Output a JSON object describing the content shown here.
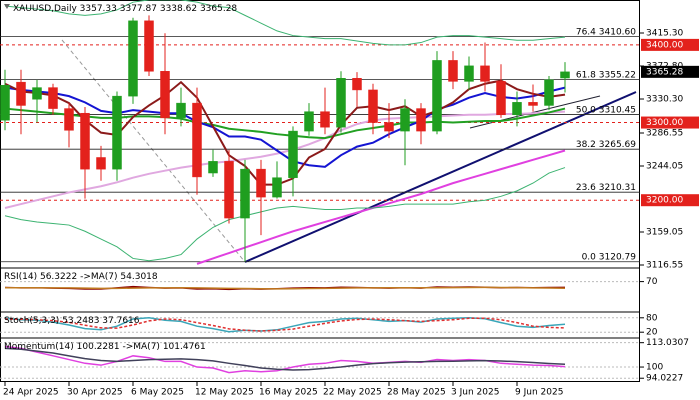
{
  "chart_data": {
    "type": "candlestick",
    "title": "XAUUSD,Daily",
    "categories": [
      "24 Apr 2025",
      null,
      null,
      null,
      "30 Apr 2025",
      null,
      null,
      null,
      "6 May 2025",
      null,
      null,
      null,
      "12 May 2025",
      null,
      null,
      null,
      "16 May 2025",
      null,
      null,
      null,
      "22 May 2025",
      null,
      null,
      null,
      "28 May 2025",
      null,
      null,
      null,
      "3 Jun 2025",
      null,
      null,
      null,
      "9 Jun 2025",
      null,
      null,
      null
    ],
    "open": [
      3303,
      3352,
      3330,
      3345,
      3318,
      3312,
      3255,
      3240,
      3334,
      3431,
      3366,
      3306,
      3325,
      3235,
      3250,
      3177,
      3240,
      3204,
      3229,
      3289,
      3314,
      3294,
      3357,
      3342,
      3300,
      3289,
      3318,
      3289,
      3380,
      3353,
      3373,
      3353,
      3310,
      3326,
      3322,
      3357.33
    ],
    "high": [
      3368,
      3368,
      3355,
      3350,
      3325,
      3320,
      3270,
      3340,
      3435,
      3438,
      3415,
      3345,
      3345,
      3265,
      3265,
      3252,
      3252,
      3250,
      3295,
      3325,
      3345,
      3366,
      3365,
      3350,
      3325,
      3330,
      3325,
      3392,
      3392,
      3385,
      3403,
      3375,
      3340,
      3349,
      3360,
      3377.87
    ],
    "low": [
      3290,
      3285,
      3300,
      3310,
      3268,
      3202,
      3225,
      3225,
      3324,
      3360,
      3285,
      3295,
      3207,
      3230,
      3170,
      3121,
      3155,
      3202,
      3205,
      3283,
      3285,
      3287,
      3320,
      3285,
      3280,
      3245,
      3272,
      3285,
      3343,
      3342,
      3340,
      3306,
      3295,
      3314,
      3316,
      3338.62
    ],
    "close": [
      3348,
      3322,
      3345,
      3318,
      3290,
      3240,
      3240,
      3334,
      3431,
      3366,
      3306,
      3325,
      3230,
      3250,
      3177,
      3240,
      3204,
      3229,
      3289,
      3314,
      3294,
      3357,
      3342,
      3300,
      3289,
      3318,
      3289,
      3380,
      3353,
      3373,
      3353,
      3310,
      3326,
      3322,
      3355,
      3365.28
    ],
    "up_color": "#1f9e1f",
    "down_color": "#e3211c",
    "ylim": [
      3112.7,
      3457.8
    ],
    "yticks": [
      {
        "value": 3415.3,
        "label": "3415.30"
      },
      {
        "value": 3372.8,
        "label": "3372.80"
      },
      {
        "value": 3330.3,
        "label": "3330.30"
      },
      3286.55,
      3244.05,
      3159.05,
      3116.55
    ],
    "overlays": [
      {
        "color": "#e0a8e0",
        "width": 2,
        "values": [
          3190,
          3195,
          3200,
          3205,
          3210,
          3214,
          3218,
          3223,
          3229,
          3234,
          3238,
          3242,
          3245,
          3248,
          3250,
          3253,
          3256,
          3260,
          3265,
          3272,
          3280,
          3290,
          3298,
          3303,
          3305,
          3306,
          3307,
          3308,
          3309,
          3310,
          3310,
          3311,
          3311,
          3312,
          3313,
          3314
        ]
      },
      {
        "color": "#e040e0",
        "width": 2,
        "values": [
          null,
          null,
          null,
          null,
          null,
          null,
          null,
          null,
          null,
          null,
          null,
          null,
          3118,
          3125,
          3132,
          3139,
          3146,
          3153,
          3160,
          3166,
          3172,
          3178,
          3184,
          3190,
          3196,
          3202,
          3208,
          3215,
          3222,
          3228,
          3234,
          3240,
          3246,
          3252,
          3258,
          3264
        ]
      },
      {
        "color": "#3cb371",
        "width": 1,
        "values": [
          3450,
          3448,
          3446,
          3444,
          3440,
          3438,
          3440,
          3445,
          3455,
          3458,
          3458,
          3458,
          3455,
          3450,
          3448,
          3438,
          3428,
          3418,
          3412,
          3410,
          3408,
          3408,
          3405,
          3402,
          3400,
          3400,
          3403,
          3410,
          3412,
          3412,
          3410,
          3408,
          3406,
          3406,
          3408,
          3410
        ]
      },
      {
        "color": "#3cb371",
        "width": 1,
        "values": [
          3180,
          3175,
          3172,
          3170,
          3168,
          3160,
          3150,
          3140,
          3125,
          3122,
          3125,
          3130,
          3150,
          3165,
          3175,
          3180,
          3185,
          3190,
          3192,
          3190,
          3188,
          3188,
          3190,
          3190,
          3192,
          3195,
          3195,
          3195,
          3195,
          3198,
          3200,
          3205,
          3212,
          3222,
          3235,
          3242
        ]
      },
      {
        "color": "#22a022",
        "width": 2,
        "values": [
          3318,
          3316,
          3314,
          3312,
          3310,
          3308,
          3306,
          3306,
          3308,
          3308,
          3307,
          3305,
          3300,
          3297,
          3292,
          3290,
          3288,
          3285,
          3283,
          3281,
          3280,
          3285,
          3290,
          3293,
          3296,
          3300,
          3300,
          3301,
          3300,
          3301,
          3302,
          3302,
          3305,
          3309,
          3313,
          3318
        ]
      },
      {
        "color": "#1414d2",
        "width": 2,
        "values": [
          3345,
          3342,
          3340,
          3338,
          3334,
          3326,
          3315,
          3312,
          3316,
          3314,
          3312,
          3312,
          3301,
          3294,
          3282,
          3282,
          3278,
          3264,
          3250,
          3245,
          3243,
          3258,
          3269,
          3274,
          3285,
          3294,
          3302,
          3317,
          3323,
          3332,
          3338,
          3333,
          3331,
          3334,
          3340,
          3345
        ]
      },
      {
        "color": "#8b1a1a",
        "width": 2,
        "values": [
          3350,
          3340,
          3338,
          3335,
          3325,
          3303,
          3287,
          3284,
          3307,
          3322,
          3335,
          3352,
          3332,
          3295,
          3258,
          3244,
          3220,
          3220,
          3228,
          3255,
          3266,
          3297,
          3319,
          3321,
          3316,
          3321,
          3308,
          3315,
          3326,
          3343,
          3350,
          3354,
          3343,
          3337,
          3333,
          3336
        ]
      }
    ],
    "level_color": "#e3211c",
    "levels": [
      {
        "value": 3400,
        "label": "3400.00"
      },
      {
        "value": 3300,
        "label": "3300.00"
      },
      {
        "value": 3200,
        "label": "3200.00"
      }
    ],
    "fibonacci": [
      {
        "level": 76.4,
        "price": {
          "value": 3410.6,
          "label": "3410.60"
        }
      },
      {
        "level": 61.8,
        "price": {
          "value": 3355.22,
          "label": "3355.22"
        }
      },
      {
        "level": {
          "value": 50,
          "label": "50.0"
        },
        "price": {
          "value": 3310.45,
          "label": "3310.45"
        }
      },
      {
        "level": 38.2,
        "price": {
          "value": 3265.69,
          "label": "3265.69"
        }
      },
      {
        "level": 23.6,
        "price": {
          "value": 3210.31,
          "label": "3210.31"
        }
      },
      {
        "level": {
          "value": 0,
          "label": "0.0"
        },
        "price": {
          "value": 3120.79,
          "label": "3120.79"
        }
      }
    ],
    "indicators": [
      {
        "title": "RSI(14)",
        "ma_title": "->MA(7)",
        "ylim": [
          0,
          100
        ],
        "yticks": [
          70
        ],
        "series": [
          {
            "color": "#8b0000",
            "values": [
              56,
              55,
              55.5,
              54.5,
              54,
              52.5,
              52.5,
              55,
              58,
              56,
              54.5,
              55,
              52.5,
              53,
              51.5,
              53,
              52,
              53,
              54.5,
              55.5,
              55,
              56.5,
              56,
              55,
              54.5,
              55.5,
              54.5,
              57,
              56.5,
              57,
              56.5,
              55.5,
              56,
              55.5,
              56,
              56.3222
            ]
          },
          {
            "color": "#c07a20",
            "values": [
              55.5,
              55.5,
              55.5,
              55.2,
              55,
              54.5,
              54,
              54,
              54.5,
              55,
              55,
              55.3,
              55,
              54.5,
              54,
              53.5,
              53,
              52.8,
              53,
              53.5,
              54,
              54.5,
              55,
              55.2,
              55.3,
              55.4,
              55.3,
              55.5,
              55.7,
              56,
              56.2,
              56,
              55.6,
              55,
              54.7,
              54.3018
            ]
          }
        ]
      },
      {
        "title": "Stoch(5,3,3)",
        "ylim": [
          0,
          100
        ],
        "yticks": [
          80,
          20
        ],
        "series": [
          {
            "color": "#3aa6b9",
            "values": [
              78,
              72,
              70,
              62,
              50,
              35,
              30,
              45,
              75,
              80,
              70,
              65,
              45,
              35,
              22,
              28,
              25,
              30,
              45,
              60,
              65,
              75,
              78,
              72,
              65,
              68,
              62,
              75,
              78,
              80,
              76,
              60,
              45,
              40,
              48,
              53.2483
            ]
          },
          {
            "color": "#e03030",
            "dash": true,
            "values": [
              75,
              74,
              72,
              68,
              61,
              49,
              38,
              37,
              50,
              67,
              75,
              72,
              60,
              48,
              34,
              28,
              25,
              28,
              33,
              45,
              57,
              67,
              73,
              75,
              72,
              68,
              65,
              68,
              72,
              78,
              78,
              72,
              60,
              45,
              40,
              37.7616
            ]
          }
        ]
      },
      {
        "title": "Momentum(14)",
        "ma_title": "->MA(7)",
        "ylim": [
          92,
          115
        ],
        "yticks": [
          113.0307,
          100,
          94.0227
        ],
        "series": [
          {
            "color": "#e040e0",
            "values": [
              111,
              110,
              108,
              106,
              104,
              102,
              101,
              103,
              106,
              105,
              103,
              103,
              100,
              99.5,
              97,
              98,
              97.5,
              98,
              100,
              101.5,
              102,
              103.5,
              103,
              102,
              102.5,
              103,
              102.5,
              104,
              103.5,
              104,
              103.5,
              102,
              101.5,
              101,
              100.8,
              100.2281
            ]
          },
          {
            "color": "#40405a",
            "values": [
              110,
              109.5,
              108.5,
              107.5,
              106,
              104.5,
              103.5,
              103,
              103.5,
              104,
              104.2,
              104.4,
              104,
              103.3,
              102,
              100.8,
              99.5,
              98.8,
              98.4,
              98.6,
              99.3,
              100,
              101,
              101.8,
              102.3,
              102.6,
              102.8,
              103,
              103.1,
              103.3,
              103.4,
              103.2,
              102.9,
              102.4,
              101.9,
              101.4761
            ]
          }
        ]
      }
    ]
  }
}
